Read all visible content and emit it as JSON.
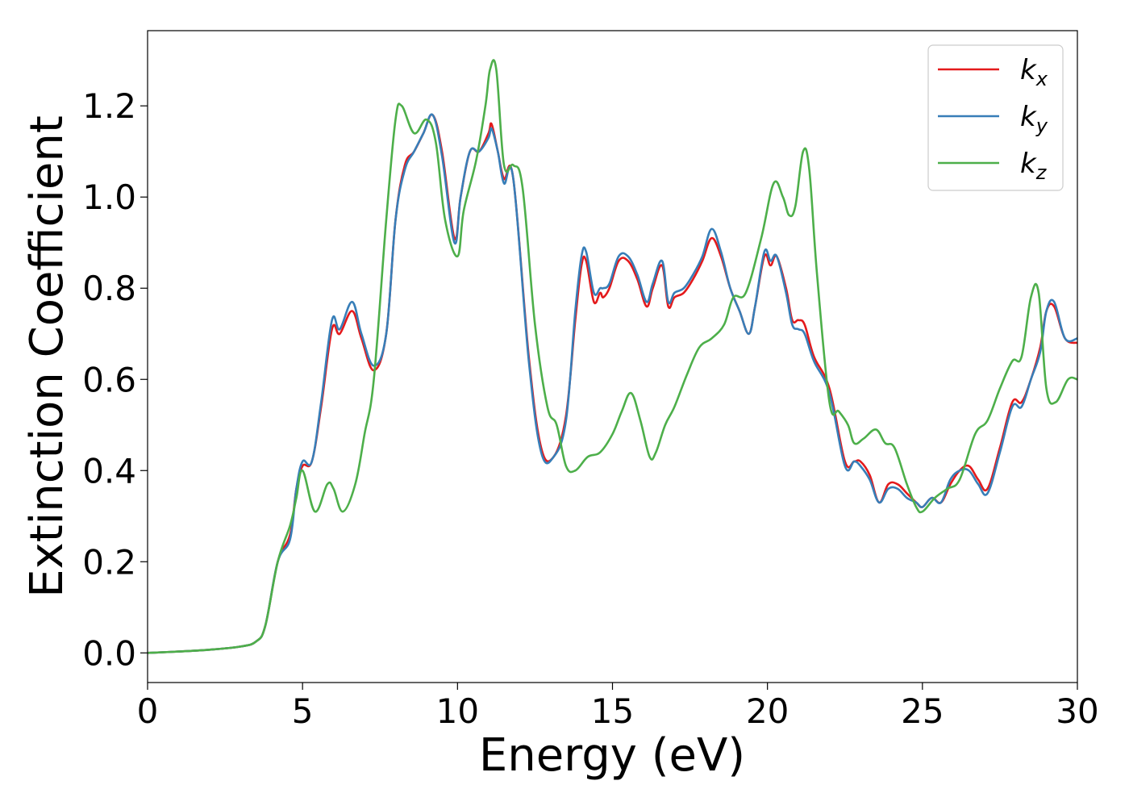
{
  "chart_data": {
    "type": "line",
    "title": "",
    "xlabel": "Energy (eV)",
    "ylabel": "Extinction Coefficient",
    "xlim": [
      0,
      30
    ],
    "ylim": [
      -0.065,
      1.365
    ],
    "xticks": [
      0,
      5,
      10,
      15,
      20,
      25,
      30
    ],
    "xtick_labels": [
      "0",
      "5",
      "10",
      "15",
      "20",
      "25",
      "30"
    ],
    "yticks": [
      0.0,
      0.2,
      0.4,
      0.6,
      0.8,
      1.0,
      1.2
    ],
    "ytick_labels": [
      "0.0",
      "0.2",
      "0.4",
      "0.6",
      "0.8",
      "1.0",
      "1.2"
    ],
    "grid": false,
    "legend": "top-right",
    "series": [
      {
        "name": "k_x",
        "label_base": "k",
        "label_sub": "x",
        "color": "#e41a1c",
        "x": [
          0,
          1,
          2,
          3,
          3.5,
          3.8,
          4.2,
          4.6,
          4.8,
          5.0,
          5.3,
          5.6,
          5.95,
          6.2,
          6.6,
          6.9,
          7.3,
          7.7,
          8.0,
          8.3,
          8.6,
          8.9,
          9.2,
          9.5,
          9.9,
          10.1,
          10.4,
          10.7,
          11.0,
          11.1,
          11.3,
          11.5,
          11.8,
          12.3,
          12.7,
          13.1,
          13.5,
          13.8,
          14.0,
          14.15,
          14.4,
          14.6,
          14.7,
          14.9,
          15.2,
          15.5,
          15.8,
          16.1,
          16.3,
          16.6,
          16.8,
          17.0,
          17.3,
          17.6,
          17.9,
          18.2,
          18.5,
          18.8,
          19.1,
          19.4,
          19.6,
          19.9,
          20.1,
          20.3,
          20.6,
          20.8,
          21.0,
          21.2,
          21.5,
          22.0,
          22.5,
          22.8,
          23.0,
          23.3,
          23.6,
          23.9,
          24.2,
          24.5,
          24.8,
          25.0,
          25.3,
          25.6,
          25.9,
          26.2,
          26.5,
          26.8,
          27.1,
          27.5,
          27.9,
          28.2,
          28.5,
          28.8,
          29.0,
          29.25,
          29.6,
          30.0
        ],
        "y": [
          0.0,
          0.003,
          0.007,
          0.014,
          0.025,
          0.06,
          0.2,
          0.26,
          0.36,
          0.41,
          0.42,
          0.54,
          0.71,
          0.7,
          0.75,
          0.69,
          0.62,
          0.7,
          0.95,
          1.07,
          1.1,
          1.14,
          1.18,
          1.1,
          0.91,
          1.0,
          1.1,
          1.1,
          1.14,
          1.16,
          1.1,
          1.04,
          1.04,
          0.65,
          0.45,
          0.43,
          0.52,
          0.73,
          0.85,
          0.86,
          0.77,
          0.79,
          0.78,
          0.8,
          0.86,
          0.86,
          0.82,
          0.76,
          0.8,
          0.85,
          0.76,
          0.78,
          0.79,
          0.82,
          0.86,
          0.91,
          0.87,
          0.8,
          0.75,
          0.7,
          0.76,
          0.87,
          0.85,
          0.87,
          0.8,
          0.73,
          0.73,
          0.72,
          0.65,
          0.58,
          0.42,
          0.42,
          0.42,
          0.39,
          0.33,
          0.37,
          0.37,
          0.35,
          0.33,
          0.32,
          0.34,
          0.33,
          0.37,
          0.4,
          0.41,
          0.38,
          0.36,
          0.45,
          0.55,
          0.55,
          0.6,
          0.67,
          0.75,
          0.76,
          0.69,
          0.68
        ]
      },
      {
        "name": "k_y",
        "label_base": "k",
        "label_sub": "y",
        "color": "#377eb8",
        "x": [
          0,
          1,
          2,
          3,
          3.5,
          3.8,
          4.2,
          4.6,
          4.8,
          5.0,
          5.3,
          5.6,
          5.95,
          6.2,
          6.6,
          6.9,
          7.3,
          7.7,
          8.0,
          8.3,
          8.6,
          8.9,
          9.2,
          9.5,
          9.9,
          10.1,
          10.4,
          10.7,
          11.0,
          11.1,
          11.3,
          11.5,
          11.8,
          12.3,
          12.7,
          13.1,
          13.5,
          13.8,
          14.0,
          14.15,
          14.4,
          14.6,
          14.7,
          14.9,
          15.2,
          15.5,
          15.8,
          16.1,
          16.3,
          16.6,
          16.8,
          17.0,
          17.3,
          17.6,
          17.9,
          18.2,
          18.5,
          18.8,
          19.1,
          19.4,
          19.6,
          19.9,
          20.1,
          20.3,
          20.6,
          20.8,
          21.0,
          21.2,
          21.5,
          22.0,
          22.5,
          22.8,
          23.0,
          23.3,
          23.6,
          23.9,
          24.2,
          24.5,
          24.8,
          25.0,
          25.3,
          25.6,
          25.9,
          26.2,
          26.5,
          26.8,
          27.1,
          27.5,
          27.9,
          28.2,
          28.5,
          28.8,
          29.0,
          29.25,
          29.6,
          30.0
        ],
        "y": [
          0.0,
          0.003,
          0.007,
          0.014,
          0.025,
          0.06,
          0.2,
          0.25,
          0.36,
          0.42,
          0.42,
          0.55,
          0.73,
          0.71,
          0.77,
          0.7,
          0.63,
          0.7,
          0.95,
          1.06,
          1.1,
          1.14,
          1.18,
          1.09,
          0.9,
          1.0,
          1.1,
          1.1,
          1.13,
          1.15,
          1.1,
          1.03,
          1.04,
          0.64,
          0.44,
          0.43,
          0.51,
          0.75,
          0.87,
          0.88,
          0.79,
          0.8,
          0.8,
          0.81,
          0.87,
          0.87,
          0.83,
          0.77,
          0.81,
          0.86,
          0.77,
          0.79,
          0.8,
          0.83,
          0.87,
          0.93,
          0.88,
          0.8,
          0.75,
          0.7,
          0.76,
          0.88,
          0.86,
          0.87,
          0.79,
          0.72,
          0.71,
          0.7,
          0.64,
          0.57,
          0.41,
          0.42,
          0.41,
          0.38,
          0.33,
          0.36,
          0.36,
          0.34,
          0.33,
          0.32,
          0.34,
          0.33,
          0.38,
          0.4,
          0.4,
          0.37,
          0.35,
          0.44,
          0.54,
          0.54,
          0.6,
          0.66,
          0.75,
          0.77,
          0.69,
          0.69
        ]
      },
      {
        "name": "k_z",
        "label_base": "k",
        "label_sub": "z",
        "color": "#4daf4a",
        "x": [
          0,
          1,
          2,
          3,
          3.5,
          3.8,
          4.2,
          4.6,
          4.8,
          5.0,
          5.4,
          5.8,
          6.0,
          6.3,
          6.7,
          7.0,
          7.3,
          7.7,
          8.0,
          8.2,
          8.6,
          9.0,
          9.3,
          9.6,
          10.0,
          10.2,
          10.6,
          10.9,
          11.05,
          11.25,
          11.5,
          11.8,
          12.1,
          12.5,
          12.9,
          13.2,
          13.5,
          13.8,
          14.2,
          14.6,
          15.0,
          15.3,
          15.6,
          15.9,
          16.2,
          16.4,
          16.7,
          17.0,
          17.4,
          17.8,
          18.2,
          18.6,
          18.9,
          19.3,
          19.8,
          20.2,
          20.5,
          20.7,
          20.9,
          21.15,
          21.35,
          21.6,
          22.0,
          22.3,
          22.6,
          22.8,
          23.1,
          23.5,
          23.8,
          24.1,
          24.5,
          24.8,
          25.0,
          25.4,
          25.8,
          26.2,
          26.7,
          27.1,
          27.5,
          27.9,
          28.2,
          28.5,
          28.75,
          29.0,
          29.3,
          29.7,
          30.0
        ],
        "y": [
          0.0,
          0.003,
          0.007,
          0.014,
          0.025,
          0.06,
          0.2,
          0.28,
          0.34,
          0.4,
          0.31,
          0.37,
          0.36,
          0.31,
          0.37,
          0.48,
          0.6,
          0.95,
          1.17,
          1.2,
          1.14,
          1.17,
          1.12,
          0.95,
          0.87,
          0.97,
          1.08,
          1.2,
          1.28,
          1.28,
          1.07,
          1.07,
          1.02,
          0.72,
          0.54,
          0.5,
          0.41,
          0.4,
          0.43,
          0.44,
          0.48,
          0.53,
          0.57,
          0.51,
          0.43,
          0.44,
          0.5,
          0.54,
          0.61,
          0.67,
          0.69,
          0.72,
          0.78,
          0.79,
          0.91,
          1.03,
          1.0,
          0.96,
          0.98,
          1.1,
          1.06,
          0.83,
          0.55,
          0.53,
          0.5,
          0.46,
          0.47,
          0.49,
          0.46,
          0.45,
          0.37,
          0.32,
          0.31,
          0.34,
          0.36,
          0.38,
          0.48,
          0.51,
          0.58,
          0.64,
          0.65,
          0.78,
          0.79,
          0.58,
          0.55,
          0.6,
          0.6
        ]
      }
    ]
  }
}
